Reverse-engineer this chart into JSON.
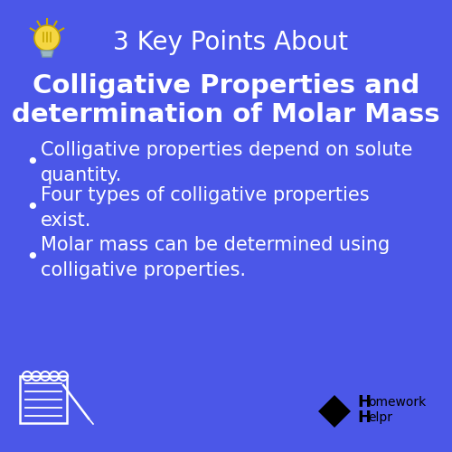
{
  "background_color": "#4B57E8",
  "header_text": "3 Key Points About",
  "title_line1": "Colligative Properties and",
  "title_line2": "determination of Molar Mass",
  "bullet_points": [
    "Colligative properties depend on solute\nquantity.",
    "Four types of colligative properties\nexist.",
    "Molar mass can be determined using\ncolligative properties."
  ],
  "header_color": "#ffffff",
  "title_color": "#ffffff",
  "bullet_color": "#ffffff",
  "header_fontsize": 20,
  "title_fontsize": 21,
  "bullet_fontsize": 15,
  "fig_width": 5.0,
  "fig_height": 5.0,
  "dpi": 100
}
